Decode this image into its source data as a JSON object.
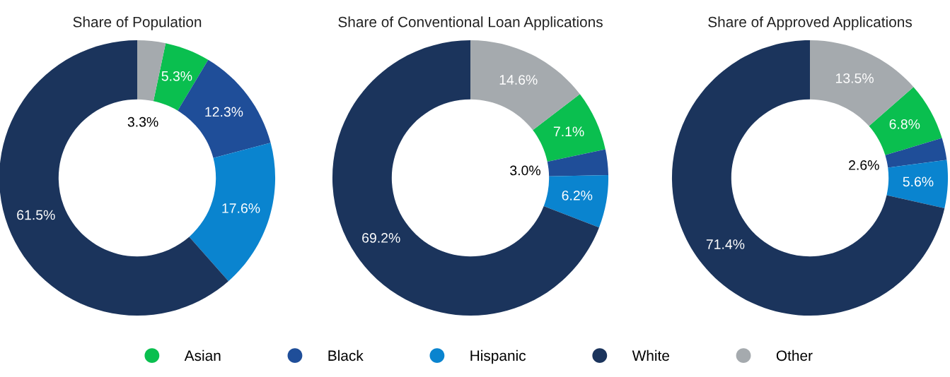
{
  "chart_data": [
    {
      "type": "donut",
      "title": "Share of Population",
      "categories": [
        "Asian",
        "Black",
        "Hispanic",
        "White",
        "Other"
      ],
      "values": [
        5.3,
        12.3,
        17.6,
        61.5,
        3.3
      ],
      "value_labels": [
        "5.3%",
        "12.3%",
        "17.6%",
        "61.5%",
        "3.3%"
      ],
      "colors": [
        "#0abf4f",
        "#1f4e99",
        "#0a84cf",
        "#1b345c",
        "#a5aaae"
      ],
      "legend": "bottom"
    },
    {
      "type": "donut",
      "title": "Share of Conventional Loan Applications",
      "categories": [
        null,
        null,
        null,
        null,
        null
      ],
      "values": [
        7.1,
        3.0,
        6.2,
        69.2,
        14.6
      ],
      "value_labels": [
        "7.1%",
        "3.0%",
        "6.2%",
        "69.2%",
        "14.6%"
      ],
      "colors": [
        "#0abf4f",
        "#1f4e99",
        "#0a84cf",
        "#1b345c",
        "#a5aaae"
      ]
    },
    {
      "type": "donut",
      "title": "Share of Approved Applications",
      "categories": [
        null,
        null,
        null,
        null,
        null
      ],
      "values": [
        6.8,
        2.6,
        5.6,
        71.4,
        13.5
      ],
      "value_labels": [
        "6.8%",
        "2.6%",
        "5.6%",
        "71.4%",
        "13.5%"
      ],
      "colors": [
        "#0abf4f",
        "#1f4e99",
        "#0a84cf",
        "#1b345c",
        "#a5aaae"
      ]
    }
  ]
}
